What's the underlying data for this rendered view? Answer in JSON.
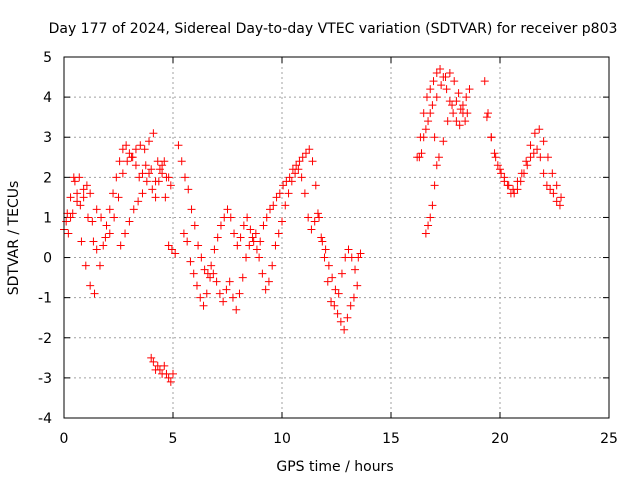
{
  "chart_data": {
    "type": "scatter",
    "title": "Day 177 of 2024, Sidereal Day-to-day VTEC variation (SDTVAR) for receiver p803",
    "xlabel": "GPS time / hours",
    "ylabel": "SDTVAR / TECUs",
    "xlim": [
      0,
      25
    ],
    "ylim": [
      -4,
      5
    ],
    "xticks": [
      0,
      5,
      10,
      15,
      20,
      25
    ],
    "xtick_labels": [
      "0",
      "5",
      "10",
      "15",
      "20",
      "25"
    ],
    "yticks": [
      -4,
      -3,
      -2,
      -1,
      0,
      1,
      2,
      3,
      4,
      5
    ],
    "ytick_labels": [
      "-4",
      "-3",
      "-2",
      "-1",
      "0",
      "1",
      "2",
      "3",
      "4",
      "5"
    ],
    "grid": true,
    "marker": "+",
    "color": "#ff0000",
    "series": [
      {
        "name": "SDTVAR",
        "x": [
          0.0,
          0.15,
          0.3,
          0.45,
          0.6,
          0.75,
          0.9,
          1.05,
          1.2,
          1.35,
          1.5,
          1.65,
          1.8,
          1.95,
          2.1,
          2.25,
          2.4,
          2.55,
          2.7,
          2.85,
          3.0,
          3.15,
          3.3,
          3.45,
          3.6,
          3.75,
          3.9,
          4.05,
          4.2,
          4.35,
          4.5,
          4.65,
          4.8,
          4.95,
          5.1,
          5.25,
          5.4,
          5.55,
          5.7,
          5.85,
          6.0,
          6.15,
          6.3,
          6.45,
          6.6,
          6.75,
          6.9,
          7.05,
          7.2,
          7.35,
          7.5,
          7.65,
          7.8,
          7.95,
          8.1,
          8.25,
          8.4,
          8.55,
          8.7,
          8.85,
          9.0,
          9.15,
          9.3,
          9.45,
          9.6,
          9.75,
          9.9,
          10.05,
          10.2,
          10.35,
          10.5,
          10.65,
          10.8,
          10.95,
          11.1,
          11.25,
          11.4,
          11.55,
          11.7,
          11.85,
          12.0,
          12.15,
          12.3,
          12.45,
          12.6,
          12.75,
          12.9,
          13.05,
          13.2,
          13.35,
          13.5,
          13.6,
          0.1,
          0.3,
          0.5,
          0.7,
          0.9,
          1.1,
          1.3,
          1.5,
          1.7,
          1.9,
          2.1,
          2.3,
          2.5,
          2.7,
          2.9,
          3.1,
          3.3,
          3.5,
          3.7,
          3.9,
          4.1,
          4.3,
          4.5,
          4.7,
          4.9,
          0.2,
          0.4,
          0.6,
          0.8,
          1.0,
          1.2,
          1.4,
          2.6,
          2.8,
          3.0,
          3.2,
          3.4,
          3.6,
          3.8,
          4.0,
          4.2,
          4.4,
          4.6,
          4.8,
          4.0,
          4.1,
          4.2,
          4.3,
          4.4,
          4.5,
          4.6,
          4.7,
          4.8,
          4.9,
          5.0,
          5.5,
          5.65,
          5.8,
          5.95,
          6.1,
          6.25,
          6.4,
          6.55,
          6.7,
          6.85,
          7.0,
          7.15,
          7.3,
          7.45,
          7.6,
          7.75,
          7.9,
          8.05,
          8.2,
          8.35,
          8.5,
          8.65,
          8.8,
          8.95,
          9.1,
          9.25,
          9.4,
          9.55,
          9.7,
          9.85,
          10.0,
          10.15,
          10.3,
          10.45,
          10.6,
          10.75,
          10.9,
          11.05,
          11.2,
          11.35,
          11.5,
          11.65,
          11.8,
          11.95,
          12.1,
          12.25,
          12.4,
          12.55,
          12.7,
          12.85,
          13.0,
          13.15,
          13.3,
          13.45,
          16.2,
          16.35,
          16.5,
          16.65,
          16.8,
          16.95,
          17.1,
          17.25,
          17.4,
          17.55,
          17.7,
          17.85,
          18.0,
          18.15,
          18.3,
          18.45,
          18.6,
          16.3,
          16.5,
          16.7,
          16.9,
          17.1,
          17.3,
          17.5,
          17.7,
          17.9,
          18.1,
          18.3,
          18.5,
          16.4,
          16.6,
          16.8,
          17.0,
          17.2,
          17.4,
          17.6,
          17.8,
          18.0,
          18.2,
          18.4,
          16.6,
          16.7,
          16.8,
          16.9,
          17.0,
          17.1,
          19.3,
          19.45,
          19.6,
          19.75,
          19.9,
          20.05,
          20.2,
          20.35,
          20.5,
          20.65,
          20.8,
          20.95,
          21.1,
          21.25,
          21.4,
          21.55,
          21.7,
          21.85,
          22.0,
          22.15,
          22.3,
          22.45,
          22.6,
          22.75,
          19.4,
          19.6,
          19.8,
          20.0,
          20.2,
          20.4,
          20.6,
          20.8,
          21.0,
          21.2,
          21.4,
          21.6,
          21.8,
          22.0,
          22.2,
          22.4,
          22.6,
          22.8
        ],
        "y": [
          0.7,
          1.1,
          1.5,
          2.0,
          1.6,
          1.3,
          1.7,
          1.8,
          1.6,
          0.4,
          0.2,
          -0.2,
          0.3,
          0.8,
          1.2,
          1.6,
          2.0,
          2.4,
          2.7,
          2.8,
          2.6,
          2.5,
          2.3,
          2.0,
          2.1,
          2.3,
          2.1,
          1.7,
          1.5,
          1.9,
          2.1,
          1.5,
          0.3,
          0.2,
          0.1,
          2.8,
          2.4,
          2.0,
          1.7,
          1.2,
          0.8,
          0.3,
          0.0,
          -0.3,
          -0.4,
          -0.2,
          0.2,
          0.5,
          0.8,
          1.0,
          1.2,
          1.0,
          0.6,
          0.3,
          0.5,
          0.8,
          1.0,
          0.7,
          0.4,
          0.2,
          0.4,
          0.8,
          1.0,
          1.2,
          1.3,
          1.5,
          1.6,
          1.8,
          1.9,
          2.0,
          2.2,
          2.3,
          2.4,
          2.5,
          2.6,
          2.7,
          2.4,
          1.8,
          1.0,
          0.4,
          0.2,
          -0.2,
          -0.5,
          -0.8,
          -0.9,
          -0.4,
          0.0,
          0.2,
          0.0,
          -0.3,
          0.0,
          0.1,
          0.9,
          1.0,
          1.9,
          2.0,
          1.5,
          1.0,
          0.9,
          1.2,
          1.0,
          0.5,
          0.6,
          1.0,
          1.5,
          2.1,
          2.4,
          2.5,
          2.7,
          2.8,
          2.7,
          2.9,
          3.1,
          2.4,
          2.3,
          2.0,
          1.8,
          0.6,
          1.1,
          1.4,
          0.4,
          -0.2,
          -0.7,
          -0.9,
          0.3,
          0.6,
          0.9,
          1.2,
          1.4,
          1.6,
          1.9,
          2.2,
          1.9,
          2.2,
          2.4,
          2.0,
          -2.5,
          -2.6,
          -2.8,
          -2.7,
          -2.8,
          -2.9,
          -2.7,
          -2.9,
          -3.0,
          -3.1,
          -2.9,
          0.6,
          0.4,
          -0.1,
          -0.4,
          -0.7,
          -1.0,
          -1.2,
          -0.9,
          -0.5,
          -0.4,
          -0.6,
          -0.9,
          -1.1,
          -0.8,
          -0.6,
          -1.0,
          -1.3,
          -0.9,
          -0.5,
          0.0,
          0.3,
          0.5,
          0.6,
          0.0,
          -0.4,
          -0.8,
          -0.6,
          -0.2,
          0.3,
          0.6,
          0.9,
          1.3,
          1.6,
          1.9,
          2.1,
          2.2,
          2.0,
          1.6,
          1.0,
          0.7,
          0.9,
          1.1,
          0.5,
          0.0,
          -0.6,
          -1.1,
          -1.2,
          -1.4,
          -1.6,
          -1.8,
          -1.5,
          -1.2,
          -1.0,
          -0.7,
          2.5,
          3.0,
          3.6,
          4.0,
          4.2,
          4.4,
          4.6,
          4.7,
          4.5,
          4.2,
          3.9,
          3.6,
          3.4,
          3.3,
          3.6,
          4.0,
          4.2,
          2.5,
          3.0,
          3.4,
          3.8,
          4.0,
          4.3,
          4.5,
          4.6,
          4.4,
          4.1,
          3.8,
          3.6,
          2.6,
          3.2,
          3.6,
          3.0,
          2.5,
          2.9,
          3.4,
          3.8,
          3.9,
          3.7,
          3.4,
          0.6,
          0.8,
          1.0,
          1.3,
          1.8,
          2.3,
          4.4,
          3.6,
          3.0,
          2.6,
          2.3,
          2.1,
          1.9,
          1.8,
          1.6,
          1.6,
          1.7,
          1.9,
          2.1,
          2.3,
          2.5,
          2.6,
          2.7,
          2.5,
          2.1,
          1.8,
          1.7,
          1.6,
          1.4,
          1.3,
          3.5,
          3.0,
          2.5,
          2.2,
          2.0,
          1.8,
          1.7,
          1.9,
          2.1,
          2.4,
          2.8,
          3.1,
          3.2,
          2.9,
          2.5,
          2.1,
          1.8,
          1.5
        ]
      }
    ]
  }
}
